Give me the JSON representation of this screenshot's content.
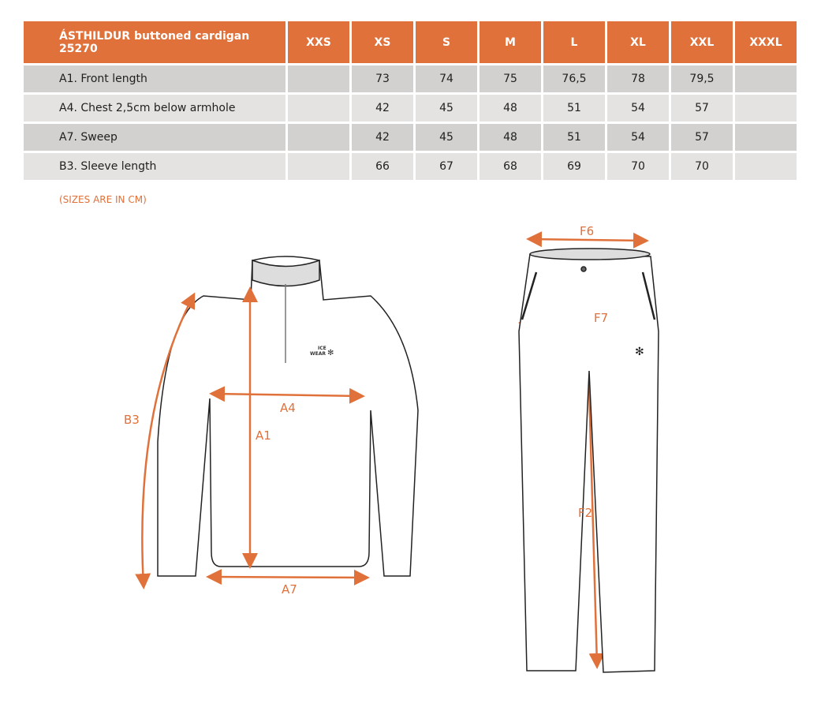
{
  "table": {
    "title": "ÁSTHILDUR buttoned cardigan 25270",
    "sizes": [
      "XXS",
      "XS",
      "S",
      "M",
      "L",
      "XL",
      "XXL",
      "XXXL"
    ],
    "rows": [
      {
        "label": "A1. Front length",
        "values": [
          "",
          "73",
          "74",
          "75",
          "76,5",
          "78",
          "79,5",
          ""
        ]
      },
      {
        "label": "A4. Chest 2,5cm below armhole",
        "values": [
          "",
          "42",
          "45",
          "48",
          "51",
          "54",
          "57",
          ""
        ]
      },
      {
        "label": "A7. Sweep",
        "values": [
          "",
          "42",
          "45",
          "48",
          "51",
          "54",
          "57",
          ""
        ]
      },
      {
        "label": "B3. Sleeve length",
        "values": [
          "",
          "66",
          "67",
          "68",
          "69",
          "70",
          "70",
          ""
        ]
      }
    ]
  },
  "note": "(SIZES ARE IN CM)",
  "diagram": {
    "top_labels": {
      "a1": "A1",
      "a4": "A4",
      "a7": "A7",
      "b3": "B3"
    },
    "pants_labels": {
      "f6": "F6",
      "f7": "F7",
      "f2": "F2"
    },
    "logo": [
      "ICE",
      "WEAR"
    ]
  },
  "colors": {
    "accent": "#e0713a",
    "row_dark": "#d2d1cf",
    "row_light": "#e4e3e1"
  }
}
